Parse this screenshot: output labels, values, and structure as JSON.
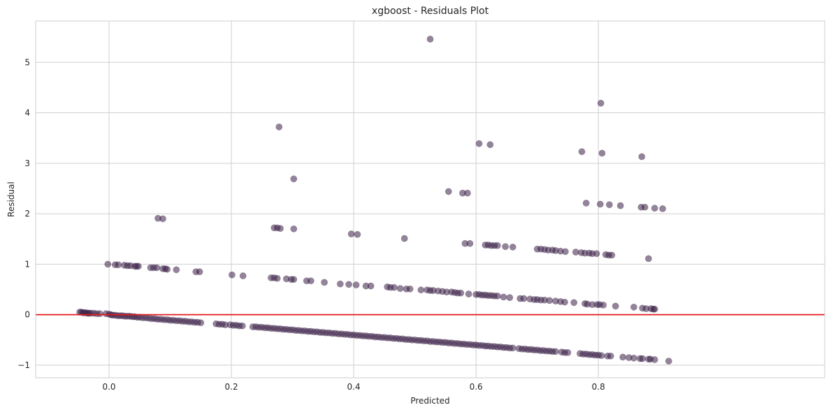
{
  "chart_data": {
    "type": "scatter",
    "title": "xgboost - Residuals Plot",
    "xlabel": "Predicted",
    "ylabel": "Residual",
    "xlim": [
      -0.12,
      1.17
    ],
    "ylim": [
      -1.25,
      5.82
    ],
    "x_ticks": [
      0.0,
      0.2,
      0.4,
      0.6,
      0.8
    ],
    "x_tick_labels": [
      "0.0",
      "0.2",
      "0.4",
      "0.6",
      "0.8"
    ],
    "y_ticks": [
      -1,
      0,
      1,
      2,
      3,
      4,
      5
    ],
    "y_tick_labels": [
      "−1",
      "0",
      "1",
      "2",
      "3",
      "4",
      "5"
    ],
    "grid": true,
    "reference_line": {
      "y": 0,
      "color": "#e31a1c"
    },
    "point_color": "#3b1f47",
    "point_opacity": 0.55,
    "points": [
      [
        -0.048,
        0.05
      ],
      [
        -0.045,
        0.05
      ],
      [
        -0.043,
        0.04
      ],
      [
        -0.04,
        0.04
      ],
      [
        -0.038,
        0.04
      ],
      [
        -0.035,
        0.03
      ],
      [
        -0.033,
        0.03
      ],
      [
        -0.03,
        0.03
      ],
      [
        -0.025,
        0.03
      ],
      [
        -0.02,
        0.02
      ],
      [
        -0.015,
        0.02
      ],
      [
        -0.005,
        0.02
      ],
      [
        0.0,
        0.01
      ],
      [
        0.003,
        0.0
      ],
      [
        0.006,
        -0.01
      ],
      [
        0.01,
        -0.01
      ],
      [
        0.014,
        -0.02
      ],
      [
        0.018,
        -0.02
      ],
      [
        0.022,
        -0.02
      ],
      [
        0.026,
        -0.03
      ],
      [
        0.03,
        -0.03
      ],
      [
        0.034,
        -0.03
      ],
      [
        0.038,
        -0.04
      ],
      [
        0.042,
        -0.04
      ],
      [
        0.046,
        -0.05
      ],
      [
        0.05,
        -0.05
      ],
      [
        0.055,
        -0.06
      ],
      [
        0.06,
        -0.06
      ],
      [
        0.065,
        -0.07
      ],
      [
        0.07,
        -0.08
      ],
      [
        0.075,
        -0.08
      ],
      [
        0.08,
        -0.09
      ],
      [
        0.085,
        -0.09
      ],
      [
        0.09,
        -0.1
      ],
      [
        0.095,
        -0.1
      ],
      [
        0.1,
        -0.11
      ],
      [
        0.105,
        -0.11
      ],
      [
        0.11,
        -0.12
      ],
      [
        0.115,
        -0.12
      ],
      [
        0.12,
        -0.13
      ],
      [
        0.125,
        -0.13
      ],
      [
        0.13,
        -0.14
      ],
      [
        0.135,
        -0.14
      ],
      [
        0.14,
        -0.15
      ],
      [
        0.145,
        -0.15
      ],
      [
        0.15,
        -0.16
      ],
      [
        0.175,
        -0.18
      ],
      [
        0.18,
        -0.19
      ],
      [
        0.185,
        -0.19
      ],
      [
        0.19,
        -0.2
      ],
      [
        0.198,
        -0.2
      ],
      [
        0.203,
        -0.21
      ],
      [
        0.208,
        -0.21
      ],
      [
        0.213,
        -0.22
      ],
      [
        0.218,
        -0.22
      ],
      [
        0.235,
        -0.24
      ],
      [
        0.24,
        -0.24
      ],
      [
        0.245,
        -0.25
      ],
      [
        0.25,
        -0.25
      ],
      [
        0.255,
        -0.26
      ],
      [
        0.26,
        -0.26
      ],
      [
        0.265,
        -0.27
      ],
      [
        0.27,
        -0.27
      ],
      [
        0.275,
        -0.28
      ],
      [
        0.28,
        -0.28
      ],
      [
        0.285,
        -0.29
      ],
      [
        0.29,
        -0.29
      ],
      [
        0.295,
        -0.3
      ],
      [
        0.3,
        -0.3
      ],
      [
        0.305,
        -0.31
      ],
      [
        0.31,
        -0.31
      ],
      [
        0.315,
        -0.32
      ],
      [
        0.32,
        -0.32
      ],
      [
        0.325,
        -0.33
      ],
      [
        0.33,
        -0.33
      ],
      [
        0.335,
        -0.34
      ],
      [
        0.34,
        -0.34
      ],
      [
        0.345,
        -0.35
      ],
      [
        0.35,
        -0.35
      ],
      [
        0.355,
        -0.36
      ],
      [
        0.36,
        -0.36
      ],
      [
        0.365,
        -0.37
      ],
      [
        0.37,
        -0.37
      ],
      [
        0.375,
        -0.38
      ],
      [
        0.38,
        -0.38
      ],
      [
        0.385,
        -0.39
      ],
      [
        0.39,
        -0.39
      ],
      [
        0.395,
        -0.4
      ],
      [
        0.4,
        -0.4
      ],
      [
        0.405,
        -0.41
      ],
      [
        0.41,
        -0.41
      ],
      [
        0.415,
        -0.42
      ],
      [
        0.42,
        -0.42
      ],
      [
        0.425,
        -0.43
      ],
      [
        0.43,
        -0.43
      ],
      [
        0.435,
        -0.44
      ],
      [
        0.44,
        -0.44
      ],
      [
        0.445,
        -0.45
      ],
      [
        0.45,
        -0.45
      ],
      [
        0.455,
        -0.46
      ],
      [
        0.46,
        -0.46
      ],
      [
        0.465,
        -0.47
      ],
      [
        0.47,
        -0.47
      ],
      [
        0.475,
        -0.48
      ],
      [
        0.48,
        -0.48
      ],
      [
        0.485,
        -0.49
      ],
      [
        0.49,
        -0.49
      ],
      [
        0.495,
        -0.5
      ],
      [
        0.5,
        -0.5
      ],
      [
        0.505,
        -0.51
      ],
      [
        0.51,
        -0.51
      ],
      [
        0.515,
        -0.52
      ],
      [
        0.52,
        -0.52
      ],
      [
        0.525,
        -0.53
      ],
      [
        0.53,
        -0.53
      ],
      [
        0.535,
        -0.54
      ],
      [
        0.54,
        -0.54
      ],
      [
        0.545,
        -0.55
      ],
      [
        0.55,
        -0.55
      ],
      [
        0.555,
        -0.56
      ],
      [
        0.56,
        -0.56
      ],
      [
        0.565,
        -0.57
      ],
      [
        0.57,
        -0.57
      ],
      [
        0.575,
        -0.58
      ],
      [
        0.58,
        -0.58
      ],
      [
        0.585,
        -0.59
      ],
      [
        0.59,
        -0.59
      ],
      [
        0.595,
        -0.6
      ],
      [
        0.6,
        -0.6
      ],
      [
        0.605,
        -0.61
      ],
      [
        0.61,
        -0.61
      ],
      [
        0.615,
        -0.62
      ],
      [
        0.62,
        -0.62
      ],
      [
        0.625,
        -0.63
      ],
      [
        0.63,
        -0.63
      ],
      [
        0.635,
        -0.64
      ],
      [
        0.64,
        -0.64
      ],
      [
        0.645,
        -0.65
      ],
      [
        0.65,
        -0.65
      ],
      [
        0.655,
        -0.66
      ],
      [
        0.66,
        -0.66
      ],
      [
        0.67,
        -0.67
      ],
      [
        0.675,
        -0.68
      ],
      [
        0.68,
        -0.68
      ],
      [
        0.685,
        -0.69
      ],
      [
        0.69,
        -0.69
      ],
      [
        0.695,
        -0.7
      ],
      [
        0.7,
        -0.7
      ],
      [
        0.705,
        -0.71
      ],
      [
        0.71,
        -0.71
      ],
      [
        0.715,
        -0.72
      ],
      [
        0.72,
        -0.72
      ],
      [
        0.725,
        -0.73
      ],
      [
        0.73,
        -0.73
      ],
      [
        0.74,
        -0.74
      ],
      [
        0.745,
        -0.75
      ],
      [
        0.75,
        -0.75
      ],
      [
        0.77,
        -0.77
      ],
      [
        0.775,
        -0.78
      ],
      [
        0.78,
        -0.78
      ],
      [
        0.785,
        -0.79
      ],
      [
        0.79,
        -0.79
      ],
      [
        0.795,
        -0.8
      ],
      [
        0.8,
        -0.8
      ],
      [
        0.805,
        -0.81
      ],
      [
        0.815,
        -0.82
      ],
      [
        0.82,
        -0.82
      ],
      [
        0.84,
        -0.84
      ],
      [
        0.85,
        -0.85
      ],
      [
        0.858,
        -0.86
      ],
      [
        0.868,
        -0.87
      ],
      [
        0.872,
        -0.87
      ],
      [
        0.882,
        -0.88
      ],
      [
        0.885,
        -0.88
      ],
      [
        0.892,
        -0.89
      ],
      [
        0.915,
        -0.92
      ],
      [
        -0.002,
        1.0
      ],
      [
        0.01,
        0.99
      ],
      [
        0.015,
        0.99
      ],
      [
        0.025,
        0.98
      ],
      [
        0.03,
        0.97
      ],
      [
        0.035,
        0.97
      ],
      [
        0.042,
        0.96
      ],
      [
        0.045,
        0.96
      ],
      [
        0.048,
        0.96
      ],
      [
        0.068,
        0.93
      ],
      [
        0.073,
        0.93
      ],
      [
        0.078,
        0.93
      ],
      [
        0.088,
        0.91
      ],
      [
        0.092,
        0.91
      ],
      [
        0.095,
        0.9
      ],
      [
        0.11,
        0.89
      ],
      [
        0.142,
        0.85
      ],
      [
        0.148,
        0.85
      ],
      [
        0.201,
        0.79
      ],
      [
        0.219,
        0.77
      ],
      [
        0.265,
        0.73
      ],
      [
        0.27,
        0.73
      ],
      [
        0.275,
        0.72
      ],
      [
        0.29,
        0.71
      ],
      [
        0.298,
        0.7
      ],
      [
        0.302,
        0.7
      ],
      [
        0.323,
        0.67
      ],
      [
        0.33,
        0.67
      ],
      [
        0.352,
        0.64
      ],
      [
        0.378,
        0.61
      ],
      [
        0.392,
        0.6
      ],
      [
        0.404,
        0.59
      ],
      [
        0.42,
        0.57
      ],
      [
        0.428,
        0.57
      ],
      [
        0.455,
        0.55
      ],
      [
        0.46,
        0.54
      ],
      [
        0.466,
        0.54
      ],
      [
        0.476,
        0.52
      ],
      [
        0.486,
        0.51
      ],
      [
        0.492,
        0.51
      ],
      [
        0.51,
        0.49
      ],
      [
        0.52,
        0.49
      ],
      [
        0.525,
        0.48
      ],
      [
        0.53,
        0.48
      ],
      [
        0.538,
        0.47
      ],
      [
        0.545,
        0.46
      ],
      [
        0.552,
        0.45
      ],
      [
        0.56,
        0.45
      ],
      [
        0.565,
        0.44
      ],
      [
        0.57,
        0.43
      ],
      [
        0.575,
        0.43
      ],
      [
        0.588,
        0.41
      ],
      [
        0.6,
        0.4
      ],
      [
        0.605,
        0.4
      ],
      [
        0.61,
        0.39
      ],
      [
        0.615,
        0.39
      ],
      [
        0.62,
        0.38
      ],
      [
        0.625,
        0.38
      ],
      [
        0.63,
        0.37
      ],
      [
        0.635,
        0.37
      ],
      [
        0.645,
        0.35
      ],
      [
        0.655,
        0.34
      ],
      [
        0.672,
        0.32
      ],
      [
        0.678,
        0.32
      ],
      [
        0.688,
        0.31
      ],
      [
        0.695,
        0.3
      ],
      [
        0.7,
        0.3
      ],
      [
        0.706,
        0.29
      ],
      [
        0.712,
        0.29
      ],
      [
        0.72,
        0.28
      ],
      [
        0.73,
        0.27
      ],
      [
        0.738,
        0.26
      ],
      [
        0.745,
        0.25
      ],
      [
        0.76,
        0.24
      ],
      [
        0.778,
        0.22
      ],
      [
        0.782,
        0.21
      ],
      [
        0.79,
        0.2
      ],
      [
        0.798,
        0.2
      ],
      [
        0.802,
        0.2
      ],
      [
        0.808,
        0.19
      ],
      [
        0.828,
        0.17
      ],
      [
        0.858,
        0.15
      ],
      [
        0.872,
        0.13
      ],
      [
        0.878,
        0.12
      ],
      [
        0.886,
        0.12
      ],
      [
        0.89,
        0.11
      ],
      [
        0.892,
        0.11
      ],
      [
        0.08,
        1.91
      ],
      [
        0.088,
        1.9
      ],
      [
        0.27,
        1.72
      ],
      [
        0.275,
        1.72
      ],
      [
        0.28,
        1.71
      ],
      [
        0.302,
        1.7
      ],
      [
        0.396,
        1.6
      ],
      [
        0.406,
        1.59
      ],
      [
        0.483,
        1.51
      ],
      [
        0.582,
        1.41
      ],
      [
        0.59,
        1.41
      ],
      [
        0.615,
        1.38
      ],
      [
        0.62,
        1.38
      ],
      [
        0.625,
        1.37
      ],
      [
        0.63,
        1.37
      ],
      [
        0.635,
        1.37
      ],
      [
        0.648,
        1.35
      ],
      [
        0.66,
        1.34
      ],
      [
        0.7,
        1.3
      ],
      [
        0.706,
        1.3
      ],
      [
        0.712,
        1.29
      ],
      [
        0.718,
        1.28
      ],
      [
        0.725,
        1.28
      ],
      [
        0.73,
        1.27
      ],
      [
        0.738,
        1.26
      ],
      [
        0.746,
        1.25
      ],
      [
        0.763,
        1.24
      ],
      [
        0.772,
        1.23
      ],
      [
        0.778,
        1.22
      ],
      [
        0.785,
        1.22
      ],
      [
        0.79,
        1.21
      ],
      [
        0.797,
        1.21
      ],
      [
        0.812,
        1.19
      ],
      [
        0.817,
        1.18
      ],
      [
        0.822,
        1.18
      ],
      [
        0.882,
        1.11
      ],
      [
        0.278,
        3.72
      ],
      [
        0.302,
        2.69
      ],
      [
        0.525,
        5.46
      ],
      [
        0.555,
        2.44
      ],
      [
        0.578,
        2.41
      ],
      [
        0.586,
        2.41
      ],
      [
        0.605,
        3.39
      ],
      [
        0.623,
        3.37
      ],
      [
        0.773,
        3.23
      ],
      [
        0.78,
        2.21
      ],
      [
        0.804,
        4.19
      ],
      [
        0.803,
        2.19
      ],
      [
        0.806,
        3.2
      ],
      [
        0.818,
        2.18
      ],
      [
        0.836,
        2.16
      ],
      [
        0.87,
        2.13
      ],
      [
        0.871,
        3.13
      ],
      [
        0.876,
        2.13
      ],
      [
        0.892,
        2.11
      ],
      [
        0.905,
        2.1
      ]
    ]
  }
}
